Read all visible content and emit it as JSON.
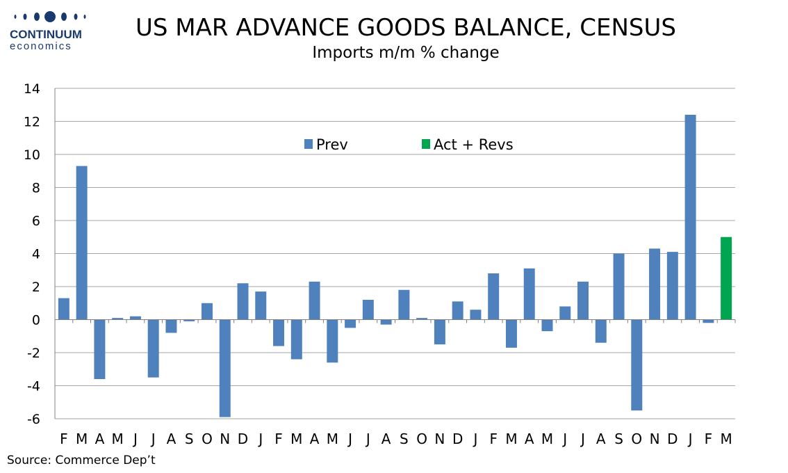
{
  "logo": {
    "top": "CONTINUUM",
    "bottom": "economics"
  },
  "colors": {
    "prev": "#4f81bd",
    "act": "#00a550",
    "grid": "#a6a6a6",
    "axis": "#808080"
  },
  "chart_data": {
    "type": "bar",
    "title": "US MAR ADVANCE GOODS BALANCE, CENSUS",
    "subtitle": "Imports m/m % change",
    "xlabel": "",
    "ylabel": "",
    "ylim": [
      -6,
      14
    ],
    "yticks": [
      14,
      12,
      10,
      8,
      6,
      4,
      2,
      0,
      -2,
      -4,
      -6
    ],
    "grid": true,
    "legend_position": "top-center",
    "categories": [
      "F",
      "M",
      "A",
      "M",
      "J",
      "J",
      "A",
      "S",
      "O",
      "N",
      "D",
      "J",
      "F",
      "M",
      "A",
      "M",
      "J",
      "J",
      "A",
      "S",
      "O",
      "N",
      "D",
      "J",
      "F",
      "M",
      "A",
      "M",
      "J",
      "J",
      "A",
      "S",
      "O",
      "N",
      "D",
      "J",
      "F",
      "M"
    ],
    "series": [
      {
        "name": "Prev",
        "values": [
          1.3,
          9.3,
          -3.6,
          0.1,
          0.2,
          -3.5,
          -0.8,
          -0.1,
          1.0,
          -5.9,
          2.2,
          1.7,
          -1.6,
          -2.4,
          2.3,
          -2.6,
          -0.5,
          1.2,
          -0.3,
          1.8,
          0.1,
          -1.5,
          1.1,
          0.6,
          2.8,
          -1.7,
          3.1,
          -0.7,
          0.8,
          2.3,
          -1.4,
          4.0,
          -5.5,
          4.3,
          4.1,
          12.4,
          -0.2,
          null
        ]
      },
      {
        "name": "Act + Revs",
        "values": [
          null,
          null,
          null,
          null,
          null,
          null,
          null,
          null,
          null,
          null,
          null,
          null,
          null,
          null,
          null,
          null,
          null,
          null,
          null,
          null,
          null,
          null,
          null,
          null,
          null,
          null,
          null,
          null,
          null,
          null,
          null,
          null,
          null,
          null,
          null,
          null,
          null,
          5.0
        ]
      }
    ]
  },
  "source": "Source: Commerce Dep’t"
}
